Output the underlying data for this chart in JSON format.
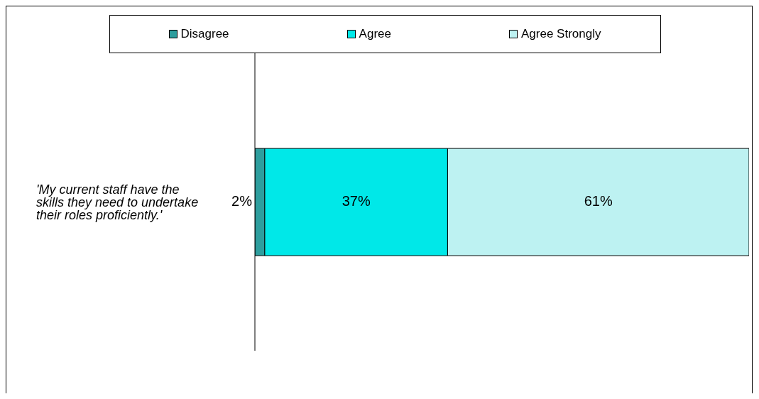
{
  "chart_data": {
    "type": "bar",
    "orientation": "horizontal",
    "stacked": true,
    "legend": "top",
    "grid": false,
    "categories": [
      "'My current staff have the skills they need to undertake their roles proficiently.'"
    ],
    "series": [
      {
        "name": "Disagree",
        "color": "#2e9e9e",
        "values": [
          2
        ],
        "value_labels": [
          "2%"
        ]
      },
      {
        "name": "Agree",
        "color": "#00e8e8",
        "values": [
          37
        ],
        "value_labels": [
          "37%"
        ]
      },
      {
        "name": "Agree Strongly",
        "color": "#bdf2f2",
        "values": [
          61
        ],
        "value_labels": [
          "61%"
        ]
      }
    ],
    "xlim": [
      0,
      100
    ]
  }
}
